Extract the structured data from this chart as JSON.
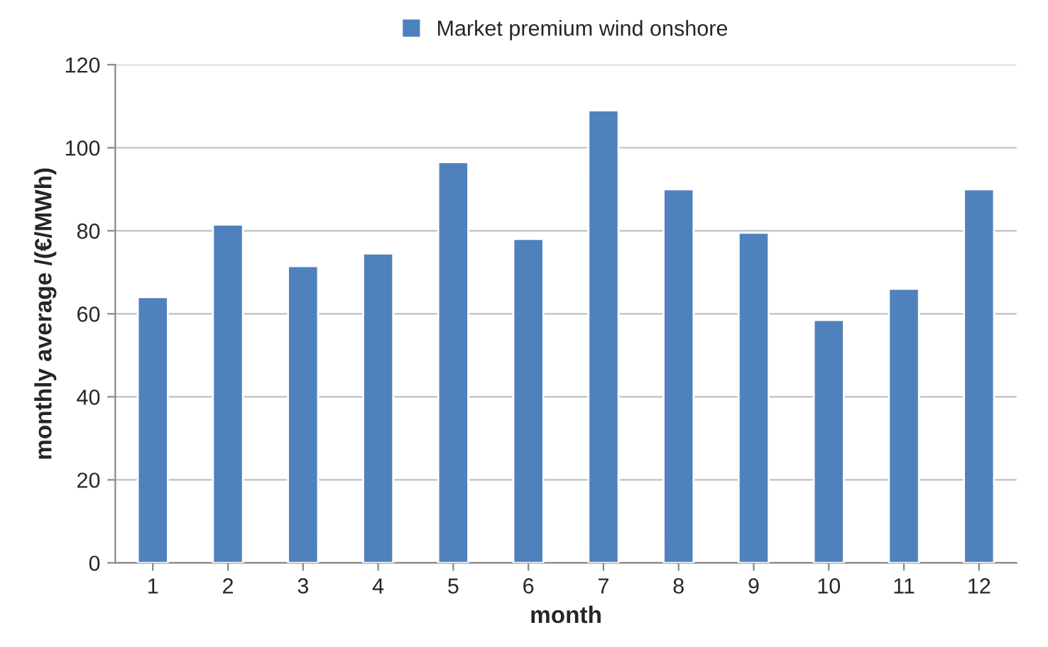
{
  "chart_data": {
    "type": "bar",
    "xlabel": "month",
    "ylabel": "monthly average /(€/MWh)",
    "categories": [
      "1",
      "2",
      "3",
      "4",
      "5",
      "6",
      "7",
      "8",
      "9",
      "10",
      "11",
      "12"
    ],
    "series": [
      {
        "name": "Market premium wind onshore",
        "color": "#4f81bd",
        "values": [
          64,
          81.5,
          71.5,
          74.5,
          96.5,
          78,
          109,
          90,
          79.5,
          58.5,
          66,
          90
        ]
      }
    ],
    "ylim": [
      0,
      120
    ],
    "yticks": [
      0,
      20,
      40,
      60,
      80,
      100,
      120
    ],
    "grid": "y",
    "legend": "top"
  }
}
